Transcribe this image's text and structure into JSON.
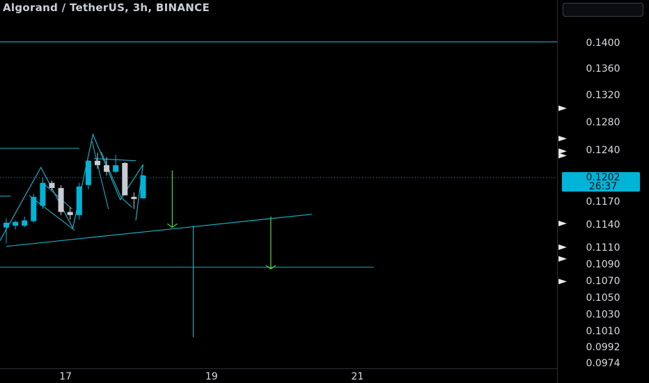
{
  "header": {
    "title": "Algorand / TetherUS, 3h, BINANCE"
  },
  "chart_data": {
    "type": "candlestick",
    "symbol": "Algorand / TetherUS",
    "interval": "3h",
    "exchange": "BINANCE",
    "y_ticks": [
      {
        "label": "0.1400",
        "value": 0.14
      },
      {
        "label": "0.1360",
        "value": 0.136
      },
      {
        "label": "0.1320",
        "value": 0.132
      },
      {
        "label": "0.1280",
        "value": 0.128
      },
      {
        "label": "0.1240",
        "value": 0.124
      },
      {
        "label": "0.1170",
        "value": 0.117
      },
      {
        "label": "0.1140",
        "value": 0.114
      },
      {
        "label": "0.1110",
        "value": 0.111
      },
      {
        "label": "0.1090",
        "value": 0.109
      },
      {
        "label": "0.1070",
        "value": 0.107
      },
      {
        "label": "0.1050",
        "value": 0.105
      },
      {
        "label": "0.1030",
        "value": 0.103
      },
      {
        "label": "0.1010",
        "value": 0.101
      },
      {
        "label": "0.0992",
        "value": 0.0992
      },
      {
        "label": "0.0974",
        "value": 0.0974
      }
    ],
    "x_ticks": [
      {
        "label": "17",
        "index": 6.5
      },
      {
        "label": "19",
        "index": 22.5
      },
      {
        "label": "21",
        "index": 38.5
      }
    ],
    "current_price": {
      "price": "0.1202",
      "countdown": "26:37",
      "value": 0.1202
    },
    "candles": [
      {
        "o": 0.11358,
        "h": 0.1148,
        "l": 0.1115,
        "c": 0.1142
      },
      {
        "o": 0.1138,
        "h": 0.1145,
        "l": 0.1133,
        "c": 0.1143
      },
      {
        "o": 0.1138,
        "h": 0.115,
        "l": 0.1136,
        "c": 0.1145
      },
      {
        "o": 0.1144,
        "h": 0.118,
        "l": 0.1142,
        "c": 0.1176
      },
      {
        "o": 0.1164,
        "h": 0.1202,
        "l": 0.116,
        "c": 0.1195
      },
      {
        "o": 0.1195,
        "h": 0.1198,
        "l": 0.1185,
        "c": 0.1188
      },
      {
        "o": 0.1188,
        "h": 0.1192,
        "l": 0.1152,
        "c": 0.1156
      },
      {
        "o": 0.1156,
        "h": 0.1162,
        "l": 0.1146,
        "c": 0.1152
      },
      {
        "o": 0.1152,
        "h": 0.1195,
        "l": 0.1146,
        "c": 0.119
      },
      {
        "o": 0.1192,
        "h": 0.1226,
        "l": 0.1186,
        "c": 0.1225
      },
      {
        "o": 0.1225,
        "h": 0.1236,
        "l": 0.1214,
        "c": 0.1219
      },
      {
        "o": 0.1219,
        "h": 0.123,
        "l": 0.1205,
        "c": 0.121
      },
      {
        "o": 0.121,
        "h": 0.1233,
        "l": 0.1208,
        "c": 0.1219
      },
      {
        "o": 0.1222,
        "h": 0.1223,
        "l": 0.1179,
        "c": 0.1178
      },
      {
        "o": 0.1176,
        "h": 0.1182,
        "l": 0.116,
        "c": 0.1173
      },
      {
        "o": 0.1174,
        "h": 0.1206,
        "l": 0.1174,
        "c": 0.1205
      }
    ],
    "annotations": {
      "top_line": 0.1401,
      "hline_upper": 0.1242,
      "hline_lower": 0.1177,
      "hline_target": 0.1086,
      "trendline": [
        {
          "index": 0,
          "value": 0.1112
        },
        {
          "index": 33.5,
          "value": 0.1153
        }
      ],
      "arrow1": {
        "index": 18.2,
        "from": 0.1212,
        "to": 0.1136
      },
      "arrow2": {
        "index": 29.0,
        "from": 0.115,
        "to": 0.1084
      },
      "vline": {
        "index": 20.5,
        "from": 0.1138,
        "to": 0.1003
      },
      "pattern_zigzag": [
        [
          -1.0,
          0.1112
        ],
        [
          3.8,
          0.1216
        ],
        [
          7.3,
          0.1135
        ],
        [
          9.5,
          0.1262
        ],
        [
          12.5,
          0.1172
        ],
        [
          15.0,
          0.122
        ],
        [
          14.2,
          0.1145
        ]
      ],
      "pattern_lines": [
        [
          [
            2.5,
            0.1178
          ],
          [
            7.5,
            0.1132
          ]
        ],
        [
          [
            4.0,
            0.1195
          ],
          [
            7.2,
            0.116
          ]
        ],
        [
          [
            9.6,
            0.1228
          ],
          [
            14.2,
            0.1225
          ]
        ],
        [
          [
            9.4,
            0.1252
          ],
          [
            11.2,
            0.116
          ]
        ],
        [
          [
            10.4,
            0.1237
          ],
          [
            12.6,
            0.1175
          ]
        ],
        [
          [
            12.6,
            0.1175
          ],
          [
            13.8,
            0.1162
          ]
        ]
      ]
    },
    "right_markers": [
      0.13,
      0.1256,
      0.1238,
      0.1232,
      0.1141,
      0.111,
      0.1096,
      0.1069
    ],
    "colors": {
      "background": "#000000",
      "bull": "#00b4d8",
      "bear": "#c8ccd2",
      "drawing": "#1bb0c8",
      "arrow": "#4ad136",
      "text": "#d9dde3",
      "badge": "#00b4d8"
    }
  }
}
